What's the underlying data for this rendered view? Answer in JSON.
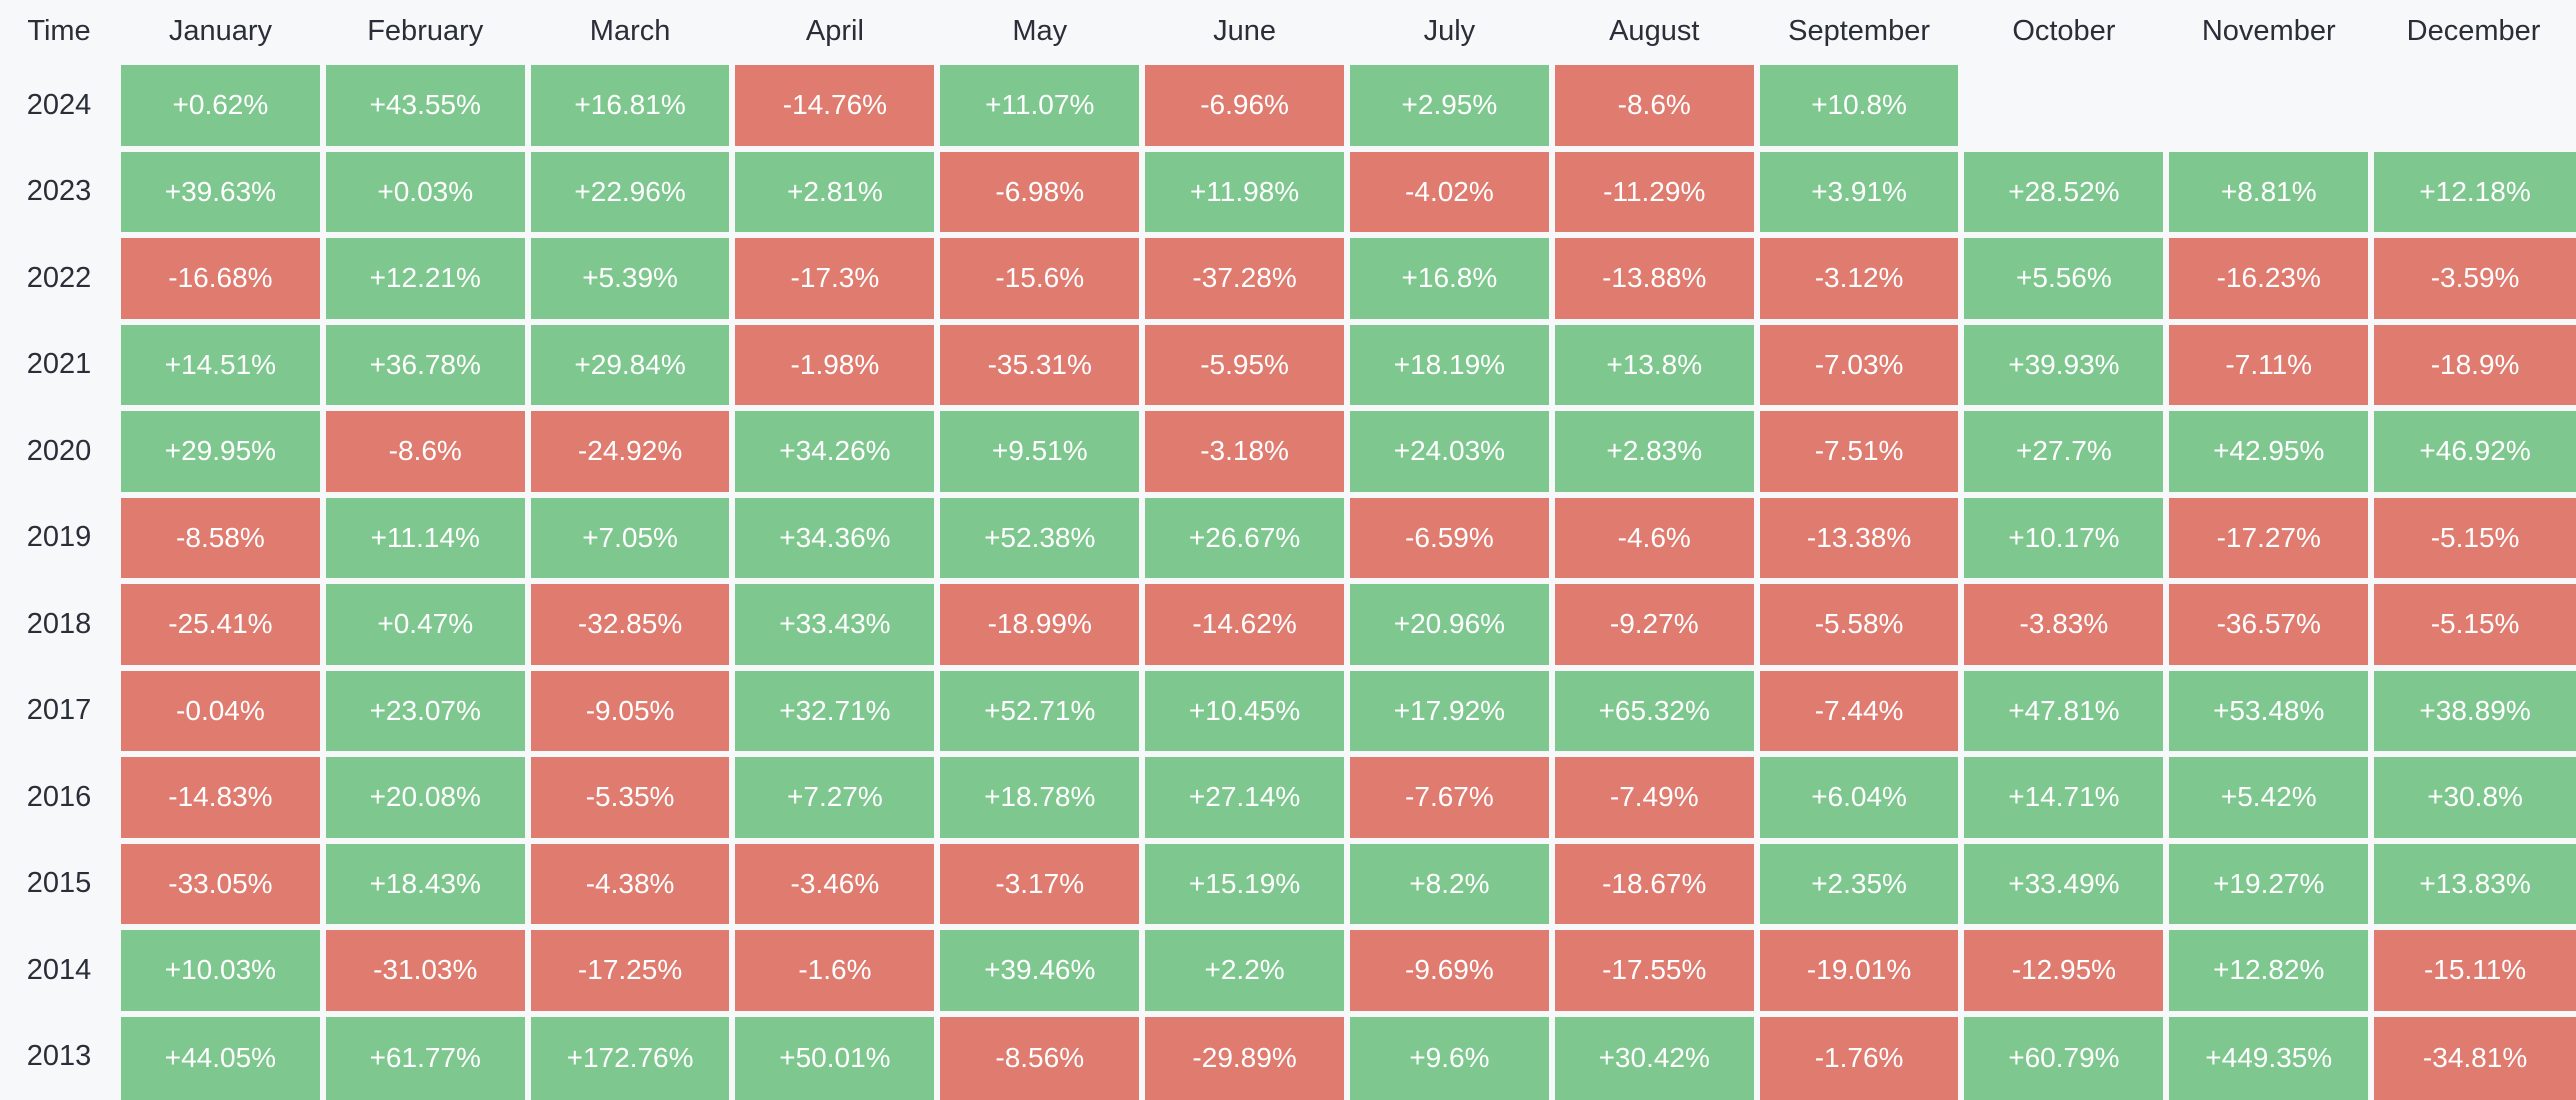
{
  "header": {
    "time_label": "Time"
  },
  "colors": {
    "positive": "#7ec88f",
    "negative": "#e07b70",
    "page_background": "#f7f8f9",
    "label_text": "#2a2e39",
    "cell_text": "#ffffff"
  },
  "chart_data": {
    "type": "heatmap",
    "title": "",
    "value_unit": "%",
    "x_categories": [
      "January",
      "February",
      "March",
      "April",
      "May",
      "June",
      "July",
      "August",
      "September",
      "October",
      "November",
      "December"
    ],
    "y_categories": [
      "2024",
      "2023",
      "2022",
      "2021",
      "2020",
      "2019",
      "2018",
      "2017",
      "2016",
      "2015",
      "2014",
      "2013"
    ],
    "values": [
      [
        0.62,
        43.55,
        16.81,
        -14.76,
        11.07,
        -6.96,
        2.95,
        -8.6,
        10.8,
        null,
        null,
        null
      ],
      [
        39.63,
        0.03,
        22.96,
        2.81,
        -6.98,
        11.98,
        -4.02,
        -11.29,
        3.91,
        28.52,
        8.81,
        12.18
      ],
      [
        -16.68,
        12.21,
        5.39,
        -17.3,
        -15.6,
        -37.28,
        16.8,
        -13.88,
        -3.12,
        5.56,
        -16.23,
        -3.59
      ],
      [
        14.51,
        36.78,
        29.84,
        -1.98,
        -35.31,
        -5.95,
        18.19,
        13.8,
        -7.03,
        39.93,
        -7.11,
        -18.9
      ],
      [
        29.95,
        -8.6,
        -24.92,
        34.26,
        9.51,
        -3.18,
        24.03,
        2.83,
        -7.51,
        27.7,
        42.95,
        46.92
      ],
      [
        -8.58,
        11.14,
        7.05,
        34.36,
        52.38,
        26.67,
        -6.59,
        -4.6,
        -13.38,
        10.17,
        -17.27,
        -5.15
      ],
      [
        -25.41,
        0.47,
        -32.85,
        33.43,
        -18.99,
        -14.62,
        20.96,
        -9.27,
        -5.58,
        -3.83,
        -36.57,
        -5.15
      ],
      [
        -0.04,
        23.07,
        -9.05,
        32.71,
        52.71,
        10.45,
        17.92,
        65.32,
        -7.44,
        47.81,
        53.48,
        38.89
      ],
      [
        -14.83,
        20.08,
        -5.35,
        7.27,
        18.78,
        27.14,
        -7.67,
        -7.49,
        6.04,
        14.71,
        5.42,
        30.8
      ],
      [
        -33.05,
        18.43,
        -4.38,
        -3.46,
        -3.17,
        15.19,
        8.2,
        -18.67,
        2.35,
        33.49,
        19.27,
        13.83
      ],
      [
        10.03,
        -31.03,
        -17.25,
        -1.6,
        39.46,
        2.2,
        -9.69,
        -17.55,
        -19.01,
        -12.95,
        12.82,
        -15.11
      ],
      [
        44.05,
        61.77,
        172.76,
        50.01,
        -8.56,
        -29.89,
        9.6,
        30.42,
        -1.76,
        60.79,
        449.35,
        -34.81
      ]
    ],
    "color_rule": "value >= 0 -> positive color (green), value < 0 -> negative color (red)",
    "legend_position": "none",
    "grid": false
  }
}
